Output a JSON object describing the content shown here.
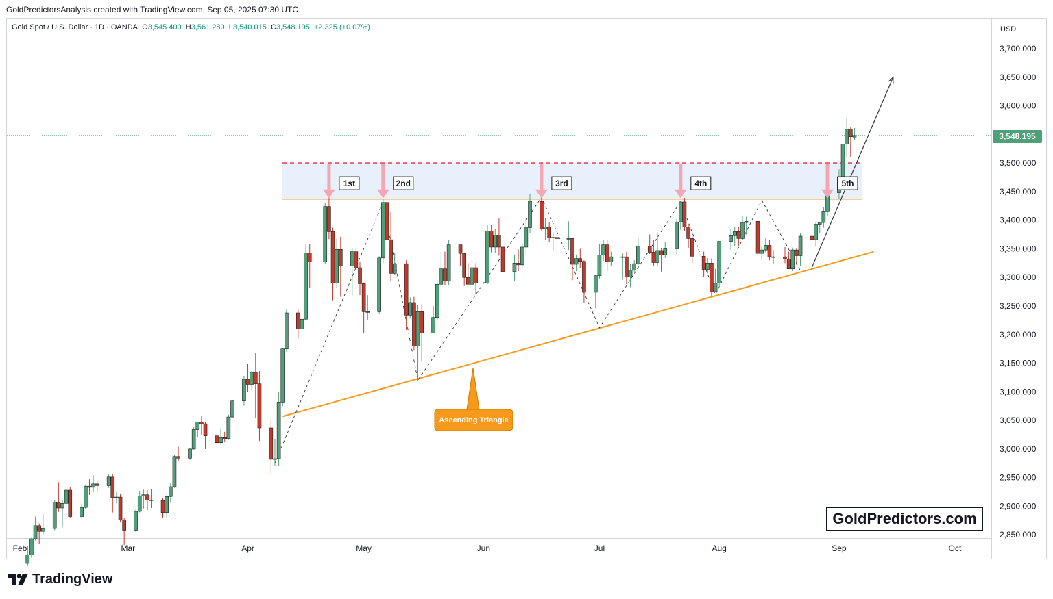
{
  "header": {
    "credit": "GoldPredictorsAnalysis created with TradingView.com, Sep 05, 2025 07:30 UTC"
  },
  "symbol": {
    "name": "Gold Spot / U.S. Dollar · 1D · OANDA",
    "open_label": "O",
    "open": "3,545.400",
    "high_label": "H",
    "high": "3,561.280",
    "low_label": "L",
    "low": "3,540.015",
    "close_label": "C",
    "close": "3,548.195",
    "change": "+2.325 (+0.07%)"
  },
  "price_axis": {
    "currency": "USD",
    "last_price": "3,548.195"
  },
  "watermark": "GoldPredictors.com",
  "branding": {
    "logo_text": "TradingView",
    "logo_icon": "tradingview-logo-icon"
  },
  "colors": {
    "up_candle": "#4f9f78",
    "down_candle": "#c0392b",
    "resistance_line": "#f0a030",
    "support_line": "#f79a1c",
    "breakout_band": "#e8f0fb",
    "dashed_red": "#e84a5f",
    "arrow_pink": "#f4a6b3",
    "triangle_label_bg": "#f79a1c"
  },
  "chart_data": {
    "type": "candlestick",
    "title": "Gold Spot / U.S. Dollar · 1D · OANDA",
    "xlabel": "",
    "ylabel": "",
    "ylim": [
      2850,
      3750
    ],
    "yticks": [
      2850,
      2900,
      2950,
      3000,
      3050,
      3100,
      3150,
      3200,
      3250,
      3300,
      3350,
      3400,
      3450,
      3500,
      3550,
      3600,
      3650,
      3700
    ],
    "ytick_labels": [
      "2,850.000",
      "2,900.000",
      "2,950.000",
      "3,000.000",
      "3,050.000",
      "3,100.000",
      "3,150.000",
      "3,200.000",
      "3,250.000",
      "3,300.000",
      "3,350.000",
      "3,400.000",
      "3,450.000",
      "3,500.000",
      "3,550.000",
      "3,600.000",
      "3,650.000",
      "3,700.000"
    ],
    "xtick_labels": [
      "Feb",
      "Mar",
      "Apr",
      "May",
      "Jun",
      "Jul",
      "Aug",
      "Sep",
      "Oct"
    ],
    "xtick_dates": [
      "2025-02-01",
      "2025-03-01",
      "2025-04-01",
      "2025-05-01",
      "2025-06-01",
      "2025-07-01",
      "2025-08-01",
      "2025-09-01",
      "2025-10-01"
    ],
    "grid": false,
    "last_price": 3548.195,
    "candles": [
      [
        "2025-02-03",
        2800,
        2830,
        2795,
        2815
      ],
      [
        "2025-02-04",
        2815,
        2845,
        2810,
        2843
      ],
      [
        "2025-02-05",
        2843,
        2882,
        2840,
        2866
      ],
      [
        "2025-02-06",
        2866,
        2870,
        2834,
        2856
      ],
      [
        "2025-02-07",
        2856,
        2886,
        2850,
        2861
      ],
      [
        "2025-02-10",
        2861,
        2911,
        2858,
        2907
      ],
      [
        "2025-02-11",
        2907,
        2942,
        2890,
        2897
      ],
      [
        "2025-02-12",
        2897,
        2910,
        2863,
        2905
      ],
      [
        "2025-02-13",
        2905,
        2930,
        2897,
        2928
      ],
      [
        "2025-02-14",
        2928,
        2933,
        2880,
        2882
      ],
      [
        "2025-02-17",
        2882,
        2905,
        2880,
        2898
      ],
      [
        "2025-02-18",
        2898,
        2938,
        2896,
        2935
      ],
      [
        "2025-02-19",
        2935,
        2947,
        2920,
        2933
      ],
      [
        "2025-02-20",
        2933,
        2954,
        2925,
        2939
      ],
      [
        "2025-02-21",
        2939,
        2945,
        2925,
        2936
      ],
      [
        "2025-02-24",
        2936,
        2956,
        2932,
        2951
      ],
      [
        "2025-02-25",
        2951,
        2956,
        2889,
        2915
      ],
      [
        "2025-02-26",
        2915,
        2925,
        2905,
        2916
      ],
      [
        "2025-02-27",
        2916,
        2921,
        2872,
        2876
      ],
      [
        "2025-02-28",
        2876,
        2880,
        2832,
        2858
      ],
      [
        "2025-03-03",
        2858,
        2894,
        2855,
        2891
      ],
      [
        "2025-03-04",
        2891,
        2927,
        2889,
        2918
      ],
      [
        "2025-03-05",
        2918,
        2929,
        2896,
        2920
      ],
      [
        "2025-03-06",
        2920,
        2928,
        2893,
        2911
      ],
      [
        "2025-03-07",
        2911,
        2930,
        2897,
        2910
      ],
      [
        "2025-03-10",
        2910,
        2914,
        2880,
        2889
      ],
      [
        "2025-03-11",
        2889,
        2920,
        2880,
        2917
      ],
      [
        "2025-03-12",
        2917,
        2940,
        2906,
        2934
      ],
      [
        "2025-03-13",
        2934,
        2990,
        2932,
        2987
      ],
      [
        "2025-03-14",
        2987,
        3004,
        2978,
        2984
      ],
      [
        "2025-03-17",
        2984,
        3001,
        2981,
        3000
      ],
      [
        "2025-03-18",
        3000,
        3038,
        2999,
        3034
      ],
      [
        "2025-03-19",
        3034,
        3047,
        3021,
        3047
      ],
      [
        "2025-03-20",
        3047,
        3057,
        3024,
        3044
      ],
      [
        "2025-03-21",
        3044,
        3048,
        3000,
        3023
      ],
      [
        "2025-03-24",
        3023,
        3028,
        3005,
        3011
      ],
      [
        "2025-03-25",
        3011,
        3036,
        3008,
        3020
      ],
      [
        "2025-03-26",
        3020,
        3030,
        3012,
        3018
      ],
      [
        "2025-03-27",
        3018,
        3060,
        3016,
        3056
      ],
      [
        "2025-03-28",
        3056,
        3086,
        3055,
        3084
      ],
      [
        "2025-03-31",
        3084,
        3128,
        3076,
        3122
      ],
      [
        "2025-04-01",
        3122,
        3149,
        3100,
        3113
      ],
      [
        "2025-04-02",
        3113,
        3136,
        3104,
        3134
      ],
      [
        "2025-04-03",
        3134,
        3168,
        3054,
        3114
      ],
      [
        "2025-04-04",
        3114,
        3136,
        3014,
        3037
      ],
      [
        "2025-04-07",
        3037,
        3055,
        2957,
        2982
      ],
      [
        "2025-04-08",
        2982,
        3018,
        2971,
        2983
      ],
      [
        "2025-04-09",
        2983,
        3099,
        2970,
        3082
      ],
      [
        "2025-04-10",
        3082,
        3176,
        3075,
        3175
      ],
      [
        "2025-04-11",
        3175,
        3245,
        3170,
        3238
      ],
      [
        "2025-04-14",
        3238,
        3245,
        3193,
        3210
      ],
      [
        "2025-04-15",
        3210,
        3230,
        3206,
        3227
      ],
      [
        "2025-04-16",
        3227,
        3358,
        3225,
        3343
      ],
      [
        "2025-04-17",
        3343,
        3358,
        3282,
        3327
      ],
      [
        "2025-04-21",
        3327,
        3430,
        3323,
        3424
      ],
      [
        "2025-04-22",
        3424,
        3498,
        3367,
        3380
      ],
      [
        "2025-04-23",
        3380,
        3387,
        3260,
        3290
      ],
      [
        "2025-04-24",
        3290,
        3368,
        3282,
        3349
      ],
      [
        "2025-04-25",
        3349,
        3371,
        3266,
        3320
      ],
      [
        "2025-04-28",
        3320,
        3351,
        3268,
        3345
      ],
      [
        "2025-04-29",
        3345,
        3352,
        3312,
        3317
      ],
      [
        "2025-04-30",
        3317,
        3328,
        3269,
        3289
      ],
      [
        "2025-05-01",
        3289,
        3291,
        3202,
        3240
      ],
      [
        "2025-05-02",
        3240,
        3269,
        3226,
        3240
      ],
      [
        "2025-05-05",
        3240,
        3337,
        3237,
        3334
      ],
      [
        "2025-05-06",
        3334,
        3437,
        3325,
        3431
      ],
      [
        "2025-05-07",
        3431,
        3434,
        3365,
        3366
      ],
      [
        "2025-05-08",
        3366,
        3415,
        3293,
        3307
      ],
      [
        "2025-05-09",
        3307,
        3343,
        3305,
        3324
      ],
      [
        "2025-05-12",
        3324,
        3330,
        3208,
        3234
      ],
      [
        "2025-05-13",
        3234,
        3265,
        3228,
        3256
      ],
      [
        "2025-05-14",
        3256,
        3266,
        3173,
        3180
      ],
      [
        "2025-05-15",
        3180,
        3252,
        3120,
        3240
      ],
      [
        "2025-05-16",
        3240,
        3253,
        3154,
        3203
      ],
      [
        "2025-05-19",
        3203,
        3250,
        3205,
        3230
      ],
      [
        "2025-05-20",
        3230,
        3294,
        3224,
        3288
      ],
      [
        "2025-05-21",
        3288,
        3345,
        3283,
        3315
      ],
      [
        "2025-05-22",
        3315,
        3345,
        3286,
        3294
      ],
      [
        "2025-05-23",
        3294,
        3365,
        3287,
        3357
      ],
      [
        "2025-05-26",
        3357,
        3350,
        3320,
        3342
      ],
      [
        "2025-05-27",
        3342,
        3343,
        3285,
        3300
      ],
      [
        "2025-05-28",
        3300,
        3325,
        3292,
        3288
      ],
      [
        "2025-05-29",
        3288,
        3330,
        3245,
        3317
      ],
      [
        "2025-05-30",
        3317,
        3325,
        3271,
        3290
      ],
      [
        "2025-06-02",
        3290,
        3392,
        3288,
        3381
      ],
      [
        "2025-06-03",
        3381,
        3392,
        3344,
        3353
      ],
      [
        "2025-06-04",
        3353,
        3385,
        3343,
        3374
      ],
      [
        "2025-06-05",
        3374,
        3403,
        3338,
        3353
      ],
      [
        "2025-06-06",
        3353,
        3375,
        3307,
        3310
      ],
      [
        "2025-06-09",
        3310,
        3340,
        3293,
        3325
      ],
      [
        "2025-06-10",
        3325,
        3349,
        3311,
        3322
      ],
      [
        "2025-06-11",
        3322,
        3360,
        3316,
        3353
      ],
      [
        "2025-06-12",
        3353,
        3404,
        3339,
        3387
      ],
      [
        "2025-06-13",
        3387,
        3446,
        3378,
        3433
      ],
      [
        "2025-06-16",
        3433,
        3451,
        3382,
        3385
      ],
      [
        "2025-06-17",
        3385,
        3404,
        3366,
        3388
      ],
      [
        "2025-06-18",
        3388,
        3396,
        3362,
        3369
      ],
      [
        "2025-06-19",
        3369,
        3379,
        3347,
        3370
      ],
      [
        "2025-06-20",
        3370,
        3375,
        3340,
        3368
      ],
      [
        "2025-06-23",
        3368,
        3398,
        3348,
        3368
      ],
      [
        "2025-06-24",
        3368,
        3369,
        3295,
        3323
      ],
      [
        "2025-06-25",
        3323,
        3340,
        3311,
        3333
      ],
      [
        "2025-06-26",
        3333,
        3350,
        3317,
        3328
      ],
      [
        "2025-06-27",
        3328,
        3330,
        3255,
        3274
      ],
      [
        "2025-06-30",
        3274,
        3305,
        3246,
        3303
      ],
      [
        "2025-07-01",
        3303,
        3358,
        3298,
        3339
      ],
      [
        "2025-07-02",
        3339,
        3365,
        3329,
        3357
      ],
      [
        "2025-07-03",
        3357,
        3366,
        3311,
        3327
      ],
      [
        "2025-07-04",
        3327,
        3345,
        3320,
        3336
      ],
      [
        "2025-07-07",
        3336,
        3343,
        3296,
        3336
      ],
      [
        "2025-07-08",
        3336,
        3345,
        3288,
        3301
      ],
      [
        "2025-07-09",
        3301,
        3323,
        3283,
        3313
      ],
      [
        "2025-07-10",
        3313,
        3330,
        3310,
        3324
      ],
      [
        "2025-07-11",
        3324,
        3369,
        3322,
        3355
      ],
      [
        "2025-07-14",
        3355,
        3375,
        3341,
        3344
      ],
      [
        "2025-07-15",
        3344,
        3366,
        3320,
        3326
      ],
      [
        "2025-07-16",
        3326,
        3377,
        3320,
        3347
      ],
      [
        "2025-07-17",
        3347,
        3351,
        3310,
        3339
      ],
      [
        "2025-07-18",
        3339,
        3362,
        3334,
        3350
      ],
      [
        "2025-07-21",
        3350,
        3403,
        3340,
        3397
      ],
      [
        "2025-07-22",
        3397,
        3433,
        3383,
        3432
      ],
      [
        "2025-07-23",
        3432,
        3439,
        3381,
        3388
      ],
      [
        "2025-07-24",
        3388,
        3393,
        3351,
        3368
      ],
      [
        "2025-07-25",
        3368,
        3373,
        3325,
        3337
      ],
      [
        "2025-07-28",
        3337,
        3345,
        3301,
        3314
      ],
      [
        "2025-07-29",
        3314,
        3334,
        3307,
        3325
      ],
      [
        "2025-07-30",
        3325,
        3333,
        3268,
        3275
      ],
      [
        "2025-07-31",
        3275,
        3315,
        3280,
        3290
      ],
      [
        "2025-08-01",
        3290,
        3363,
        3283,
        3363
      ],
      [
        "2025-08-04",
        3363,
        3385,
        3348,
        3373
      ],
      [
        "2025-08-05",
        3373,
        3389,
        3354,
        3380
      ],
      [
        "2025-08-06",
        3380,
        3389,
        3355,
        3368
      ],
      [
        "2025-08-07",
        3368,
        3408,
        3365,
        3396
      ],
      [
        "2025-08-08",
        3396,
        3406,
        3375,
        3398
      ],
      [
        "2025-08-11",
        3398,
        3404,
        3340,
        3342
      ],
      [
        "2025-08-12",
        3342,
        3354,
        3331,
        3348
      ],
      [
        "2025-08-13",
        3348,
        3369,
        3344,
        3356
      ],
      [
        "2025-08-14",
        3356,
        3366,
        3330,
        3336
      ],
      [
        "2025-08-15",
        3336,
        3348,
        3323,
        3336
      ],
      [
        "2025-08-18",
        3336,
        3353,
        3325,
        3332
      ],
      [
        "2025-08-19",
        3332,
        3345,
        3315,
        3315
      ],
      [
        "2025-08-20",
        3315,
        3352,
        3311,
        3348
      ],
      [
        "2025-08-21",
        3348,
        3351,
        3322,
        3338
      ],
      [
        "2025-08-22",
        3338,
        3378,
        3320,
        3372
      ],
      [
        "2025-08-25",
        3372,
        3378,
        3355,
        3366
      ],
      [
        "2025-08-26",
        3366,
        3397,
        3354,
        3393
      ],
      [
        "2025-08-27",
        3393,
        3397,
        3377,
        3396
      ],
      [
        "2025-08-28",
        3396,
        3423,
        3387,
        3416
      ],
      [
        "2025-08-29",
        3416,
        3454,
        3408,
        3448
      ],
      [
        "2025-09-01",
        3448,
        3489,
        3437,
        3476
      ],
      [
        "2025-09-02",
        3476,
        3540,
        3470,
        3533
      ],
      [
        "2025-09-03",
        3533,
        3578,
        3510,
        3559
      ],
      [
        "2025-09-04",
        3559,
        3563,
        3511,
        3546
      ],
      [
        "2025-09-05",
        3545.4,
        3561.28,
        3540.015,
        3548.195
      ]
    ],
    "annotations": {
      "resistance_zone": [
        3437,
        3500
      ],
      "touches": [
        {
          "label": "1st",
          "date": "2025-04-22"
        },
        {
          "label": "2nd",
          "date": "2025-05-06"
        },
        {
          "label": "3rd",
          "date": "2025-06-16"
        },
        {
          "label": "4th",
          "date": "2025-07-22"
        },
        {
          "label": "5th",
          "date": "2025-08-29"
        }
      ],
      "support_line": {
        "from": [
          "2025-04-10",
          3057
        ],
        "to": [
          "2025-09-10",
          3345
        ]
      },
      "pattern_label": "Ascending Triangle",
      "zigzag": [
        [
          "2025-04-08",
          2975
        ],
        [
          "2025-05-06",
          3432
        ],
        [
          "2025-05-15",
          3120
        ],
        [
          "2025-06-16",
          3440
        ],
        [
          "2025-07-01",
          3212
        ],
        [
          "2025-07-22",
          3433
        ],
        [
          "2025-07-31",
          3270
        ],
        [
          "2025-08-12",
          3435
        ],
        [
          "2025-08-22",
          3312
        ]
      ],
      "projection": {
        "from": [
          "2025-08-25",
          3318
        ],
        "to": [
          "2025-09-15",
          3650
        ]
      }
    }
  }
}
